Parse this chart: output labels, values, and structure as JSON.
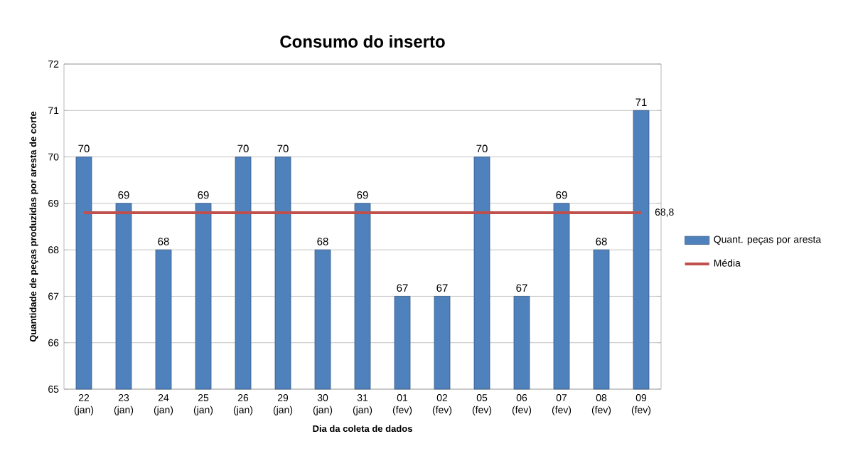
{
  "chart_data": {
    "type": "bar",
    "title": "Consumo do inserto",
    "xlabel": "Dia da coleta de dados",
    "ylabel": "Quantidade de peças produzidas por aresta de corte",
    "categories": [
      "22 (jan)",
      "23 (jan)",
      "24 (jan)",
      "25 (jan)",
      "26 (jan)",
      "29 (jan)",
      "30 (jan)",
      "31 (jan)",
      "01 (fev)",
      "02 (fev)",
      "05 (fev)",
      "06 (fev)",
      "07 (fev)",
      "08 (fev)",
      "09 (fev)"
    ],
    "series": [
      {
        "name": "Quant. peças por aresta",
        "color": "#4f81bd",
        "values": [
          70,
          69,
          68,
          69,
          70,
          70,
          68,
          69,
          67,
          67,
          70,
          67,
          69,
          68,
          71
        ],
        "value_labels": [
          "70",
          "69",
          "68",
          "69",
          "70",
          "70",
          "68",
          "69",
          "67",
          "67",
          "70",
          "67",
          "69",
          "68",
          "71"
        ]
      },
      {
        "name": "Média",
        "type": "line",
        "color": "#c0504d",
        "values": [
          68.8,
          68.8,
          68.8,
          68.8,
          68.8,
          68.8,
          68.8,
          68.8,
          68.8,
          68.8,
          68.8,
          68.8,
          68.8,
          68.8,
          68.8
        ],
        "value_labels": [
          null,
          null,
          null,
          null,
          null,
          null,
          null,
          null,
          null,
          null,
          null,
          null,
          null,
          null,
          "68,8"
        ]
      }
    ],
    "ylim": [
      65,
      72
    ],
    "yticks": [
      65,
      66,
      67,
      68,
      69,
      70,
      71,
      72
    ],
    "grid": "y",
    "legend": "right"
  }
}
